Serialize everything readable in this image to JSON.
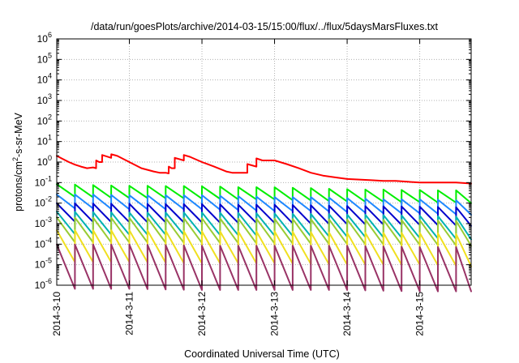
{
  "chart_data": {
    "type": "line",
    "title": "/data/run/goesPlots/archive/2014-03-15/15:00/flux/../flux/5daysMarsFluxes.txt",
    "xlabel": "Coordinated Universal Time (UTC)",
    "ylabel": {
      "base": "protons/cm",
      "sup": "2",
      "rest": "-s-sr-MeV"
    },
    "xscale": "time",
    "yscale": "log",
    "xlim": [
      "2014-03-10 00:00",
      "2014-03-15 17:00"
    ],
    "ylim": [
      1e-06,
      1000000.0
    ],
    "x_ticks": [
      "2014-3-10",
      "2014-3-11",
      "2014-3-12",
      "2014-3-13",
      "2014-3-14",
      "2014-3-15"
    ],
    "y_ticks": [
      {
        "value": 1e-06,
        "base": "10",
        "exp": "-6"
      },
      {
        "value": 1e-05,
        "base": "10",
        "exp": "-5"
      },
      {
        "value": 0.0001,
        "base": "10",
        "exp": "-4"
      },
      {
        "value": 0.001,
        "base": "10",
        "exp": "-3"
      },
      {
        "value": 0.01,
        "base": "10",
        "exp": "-2"
      },
      {
        "value": 0.1,
        "base": "10",
        "exp": "-1"
      },
      {
        "value": 1.0,
        "base": "10",
        "exp": "0"
      },
      {
        "value": 10.0,
        "base": "10",
        "exp": "1"
      },
      {
        "value": 100.0,
        "base": "10",
        "exp": "2"
      },
      {
        "value": 1000.0,
        "base": "10",
        "exp": "3"
      },
      {
        "value": 10000.0,
        "base": "10",
        "exp": "4"
      },
      {
        "value": 100000.0,
        "base": "10",
        "exp": "5"
      },
      {
        "value": 1000000.0,
        "base": "10",
        "exp": "6"
      }
    ],
    "grid": true,
    "legend": "none",
    "series": [
      {
        "color": "#ff0000",
        "x": [
          "2014-03-10 00:00",
          "2014-03-10 02:00",
          "2014-03-10 04:00",
          "2014-03-10 06:00",
          "2014-03-10 08:00",
          "2014-03-10 10:00",
          "2014-03-10 12:00",
          "2014-03-10 13:00",
          "2014-03-10 13:01",
          "2014-03-10 14:00",
          "2014-03-10 15:00",
          "2014-03-10 15:01",
          "2014-03-10 18:00",
          "2014-03-10 18:01",
          "2014-03-10 20:00",
          "2014-03-11 00:00",
          "2014-03-11 04:00",
          "2014-03-11 08:00",
          "2014-03-11 10:00",
          "2014-03-11 12:00",
          "2014-03-11 13:00",
          "2014-03-11 13:01",
          "2014-03-11 14:00",
          "2014-03-11 15:00",
          "2014-03-11 15:01",
          "2014-03-11 18:00",
          "2014-03-11 18:01",
          "2014-03-11 20:00",
          "2014-03-12 00:00",
          "2014-03-12 04:00",
          "2014-03-12 08:00",
          "2014-03-12 10:00",
          "2014-03-12 12:00",
          "2014-03-12 14:00",
          "2014-03-12 15:00",
          "2014-03-12 15:01",
          "2014-03-12 18:00",
          "2014-03-12 18:01",
          "2014-03-12 20:00",
          "2014-03-13 00:00",
          "2014-03-13 04:00",
          "2014-03-13 08:00",
          "2014-03-13 12:00",
          "2014-03-13 16:00",
          "2014-03-13 20:00",
          "2014-03-14 00:00",
          "2014-03-14 04:00",
          "2014-03-14 08:00",
          "2014-03-14 12:00",
          "2014-03-14 16:00",
          "2014-03-14 20:00",
          "2014-03-15 00:00",
          "2014-03-15 04:00",
          "2014-03-15 08:00",
          "2014-03-15 12:00",
          "2014-03-15 17:00"
        ],
        "y": [
          2.0,
          1.4,
          1.0,
          0.75,
          0.6,
          0.5,
          0.55,
          0.5,
          1.2,
          1.0,
          1.0,
          2.2,
          1.6,
          2.4,
          2.0,
          1.0,
          0.5,
          0.35,
          0.3,
          0.3,
          0.28,
          0.6,
          0.5,
          0.5,
          1.6,
          1.2,
          2.2,
          1.8,
          1.0,
          0.6,
          0.35,
          0.3,
          0.3,
          0.3,
          0.3,
          0.8,
          0.6,
          1.5,
          1.2,
          1.2,
          0.8,
          0.5,
          0.3,
          0.22,
          0.18,
          0.15,
          0.14,
          0.13,
          0.12,
          0.12,
          0.11,
          0.1,
          0.1,
          0.1,
          0.1,
          0.09
        ]
      },
      {
        "color": "#00ee00",
        "x": [
          "2014-03-10 00:00",
          "2014-03-10 06:00",
          "2014-03-10 12:00",
          "2014-03-10 18:00",
          "2014-03-11 00:00",
          "2014-03-11 06:00",
          "2014-03-11 12:00",
          "2014-03-11 18:00",
          "2014-03-12 00:00",
          "2014-03-12 06:00",
          "2014-03-12 12:00",
          "2014-03-12 18:00",
          "2014-03-13 00:00",
          "2014-03-13 06:00",
          "2014-03-13 12:00",
          "2014-03-13 18:00",
          "2014-03-14 00:00",
          "2014-03-14 06:00",
          "2014-03-14 12:00",
          "2014-03-14 18:00",
          "2014-03-15 00:00",
          "2014-03-15 06:00",
          "2014-03-15 12:00",
          "2014-03-15 17:00"
        ],
        "y": [
          0.042,
          0.04,
          0.038,
          0.036,
          0.035,
          0.035,
          0.034,
          0.034,
          0.033,
          0.032,
          0.03,
          0.03,
          0.03,
          0.028,
          0.027,
          0.025,
          0.024,
          0.023,
          0.023,
          0.022,
          0.022,
          0.021,
          0.021,
          0.02
        ],
        "peak_factor": 2.0,
        "oscillation_hours": 6
      },
      {
        "color": "#1e88ff",
        "x": [
          "2014-03-10 00:00",
          "2014-03-10 12:00",
          "2014-03-11 00:00",
          "2014-03-11 12:00",
          "2014-03-12 00:00",
          "2014-03-12 12:00",
          "2014-03-13 00:00",
          "2014-03-13 12:00",
          "2014-03-14 00:00",
          "2014-03-14 12:00",
          "2014-03-15 00:00",
          "2014-03-15 17:00"
        ],
        "y": [
          0.012,
          0.012,
          0.011,
          0.011,
          0.011,
          0.01,
          0.009,
          0.009,
          0.008,
          0.007,
          0.007,
          0.006
        ],
        "peak_factor": 2.2,
        "oscillation_hours": 6
      },
      {
        "color": "#0000cc",
        "x": [
          "2014-03-10 00:00",
          "2014-03-10 12:00",
          "2014-03-11 00:00",
          "2014-03-11 12:00",
          "2014-03-12 00:00",
          "2014-03-12 12:00",
          "2014-03-13 00:00",
          "2014-03-13 12:00",
          "2014-03-14 00:00",
          "2014-03-14 12:00",
          "2014-03-15 00:00",
          "2014-03-15 17:00"
        ],
        "y": [
          0.0035,
          0.0034,
          0.0033,
          0.0032,
          0.0032,
          0.003,
          0.003,
          0.0028,
          0.0026,
          0.0025,
          0.0024,
          0.0022
        ],
        "peak_factor": 2.8,
        "oscillation_hours": 6
      },
      {
        "color": "#00b2b2",
        "x": [
          "2014-03-10 00:00",
          "2014-03-11 00:00",
          "2014-03-12 00:00",
          "2014-03-13 00:00",
          "2014-03-14 00:00",
          "2014-03-15 00:00",
          "2014-03-15 17:00"
        ],
        "y": [
          0.0011,
          0.001,
          0.001,
          0.0009,
          0.0008,
          0.0007,
          0.0006
        ],
        "peak_factor": 3.5,
        "oscillation_hours": 6
      },
      {
        "color": "#99cc33",
        "x": [
          "2014-03-10 00:00",
          "2014-03-11 00:00",
          "2014-03-12 00:00",
          "2014-03-13 00:00",
          "2014-03-14 00:00",
          "2014-03-15 00:00",
          "2014-03-15 17:00"
        ],
        "y": [
          0.0005,
          0.00048,
          0.00046,
          0.00043,
          0.0004,
          0.00037,
          0.00033
        ],
        "peak_factor": 4.0,
        "oscillation_hours": 6
      },
      {
        "color": "#f0e020",
        "x": [
          "2014-03-10 00:00",
          "2014-03-11 00:00",
          "2014-03-12 00:00",
          "2014-03-13 00:00",
          "2014-03-14 00:00",
          "2014-03-15 00:00",
          "2014-03-15 17:00"
        ],
        "y": [
          8e-05,
          8e-05,
          7e-05,
          7e-05,
          6e-05,
          6e-05,
          5e-05
        ],
        "peak_factor": 6.0,
        "oscillation_hours": 6
      },
      {
        "color": "#993366",
        "x": [
          "2014-03-10 00:00",
          "2014-03-11 00:00",
          "2014-03-12 00:00",
          "2014-03-13 00:00",
          "2014-03-14 00:00",
          "2014-03-15 00:00",
          "2014-03-15 17:00"
        ],
        "y": [
          8e-06,
          8e-06,
          7e-06,
          7e-06,
          7e-06,
          6e-06,
          6e-06
        ],
        "peak_factor": 12.0,
        "oscillation_hours": 6
      }
    ]
  }
}
